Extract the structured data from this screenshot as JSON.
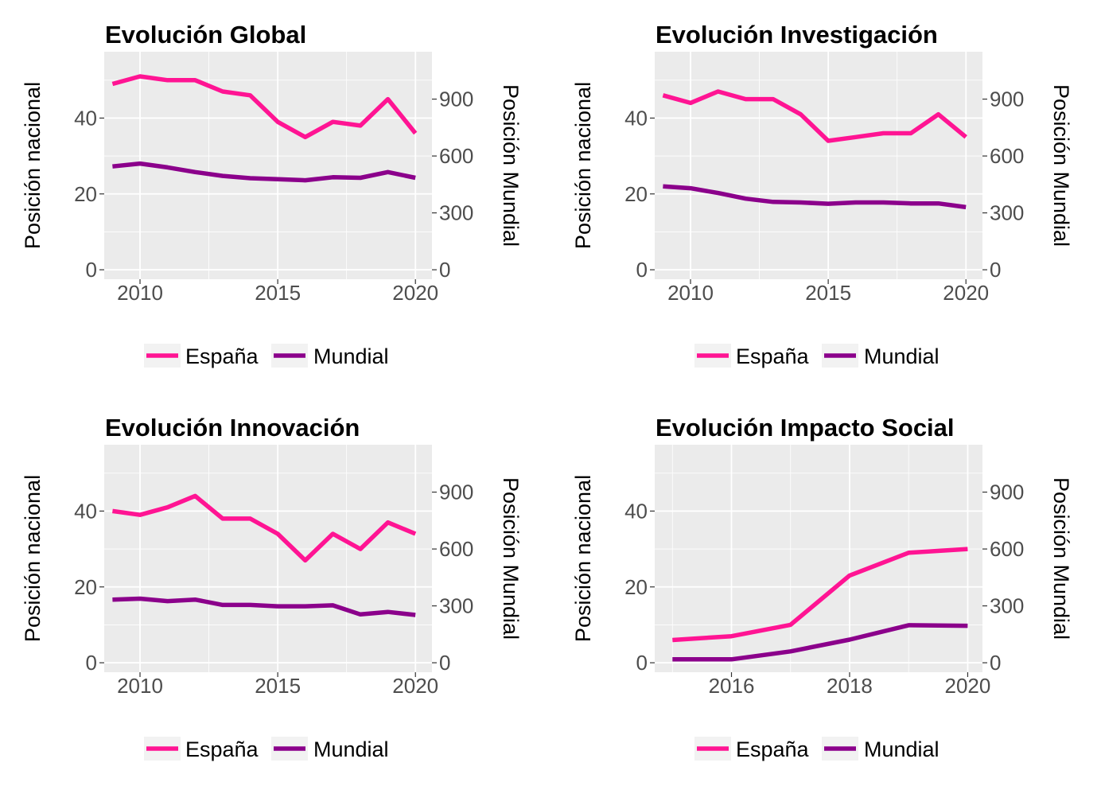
{
  "colors": {
    "espana": "#ff1493",
    "mundial": "#8b008b",
    "panel_bg": "#ebebeb",
    "grid": "#ffffff",
    "tick_text": "#4d4d4d"
  },
  "chart_data": [
    {
      "type": "line",
      "title": "Evolución Global",
      "ylabel": "Posición nacional",
      "y2label": "Posición Mundial",
      "x": [
        2009,
        2010,
        2011,
        2012,
        2013,
        2014,
        2015,
        2016,
        2017,
        2018,
        2019,
        2020
      ],
      "xlim": [
        2008.7,
        2020.6
      ],
      "ylim": [
        57.5,
        -2.5
      ],
      "xticks": [
        2010,
        2015,
        2020
      ],
      "yticks": [
        0,
        20,
        40
      ],
      "y2ticks": [
        0,
        300,
        600,
        900
      ],
      "y2_scale": 20,
      "series": [
        {
          "name": "España",
          "axis": "left",
          "values": [
            49,
            51,
            50,
            50,
            47,
            46,
            39,
            35,
            39,
            38,
            45,
            36
          ]
        },
        {
          "name": "Mundial",
          "axis": "right",
          "values": [
            545,
            560,
            540,
            515,
            495,
            483,
            478,
            472,
            488,
            485,
            515,
            485
          ]
        }
      ],
      "legend": [
        "España",
        "Mundial"
      ],
      "legend_position": "bottom"
    },
    {
      "type": "line",
      "title": "Evolución Investigación",
      "ylabel": "Posición nacional",
      "y2label": "Posición Mundial",
      "x": [
        2009,
        2010,
        2011,
        2012,
        2013,
        2014,
        2015,
        2016,
        2017,
        2018,
        2019,
        2020
      ],
      "xlim": [
        2008.7,
        2020.6
      ],
      "ylim": [
        57.5,
        -2.5
      ],
      "xticks": [
        2010,
        2015,
        2020
      ],
      "yticks": [
        0,
        20,
        40
      ],
      "y2ticks": [
        0,
        300,
        600,
        900
      ],
      "y2_scale": 20,
      "series": [
        {
          "name": "España",
          "axis": "left",
          "values": [
            46,
            44,
            47,
            45,
            45,
            41,
            34,
            35,
            36,
            36,
            41,
            35
          ]
        },
        {
          "name": "Mundial",
          "axis": "right",
          "values": [
            440,
            430,
            405,
            375,
            358,
            355,
            348,
            355,
            355,
            350,
            350,
            330
          ]
        }
      ],
      "legend": [
        "España",
        "Mundial"
      ],
      "legend_position": "bottom"
    },
    {
      "type": "line",
      "title": "Evolución Innovación",
      "ylabel": "Posición nacional",
      "y2label": "Posición Mundial",
      "x": [
        2009,
        2010,
        2011,
        2012,
        2013,
        2014,
        2015,
        2016,
        2017,
        2018,
        2019,
        2020
      ],
      "xlim": [
        2008.7,
        2020.6
      ],
      "ylim": [
        57.5,
        -2.5
      ],
      "xticks": [
        2010,
        2015,
        2020
      ],
      "yticks": [
        0,
        20,
        40
      ],
      "y2ticks": [
        0,
        300,
        600,
        900
      ],
      "y2_scale": 20,
      "series": [
        {
          "name": "España",
          "axis": "left",
          "values": [
            40,
            39,
            41,
            44,
            38,
            38,
            34,
            27,
            34,
            30,
            37,
            34
          ]
        },
        {
          "name": "Mundial",
          "axis": "right",
          "values": [
            333,
            338,
            325,
            333,
            305,
            305,
            298,
            298,
            303,
            255,
            268,
            252
          ]
        }
      ],
      "legend": [
        "España",
        "Mundial"
      ],
      "legend_position": "bottom"
    },
    {
      "type": "line",
      "title": "Evolución Impacto Social",
      "ylabel": "Posición nacional",
      "y2label": "Posición Mundial",
      "x": [
        2015,
        2016,
        2017,
        2018,
        2019,
        2020
      ],
      "xlim": [
        2014.7,
        2020.25
      ],
      "ylim": [
        57.5,
        -2.5
      ],
      "xticks": [
        2016,
        2018,
        2020
      ],
      "yticks": [
        0,
        20,
        40
      ],
      "y2ticks": [
        0,
        300,
        600,
        900
      ],
      "y2_scale": 20,
      "series": [
        {
          "name": "España",
          "axis": "left",
          "values": [
            6,
            7,
            10,
            23,
            29,
            30
          ]
        },
        {
          "name": "Mundial",
          "axis": "right",
          "values": [
            18,
            18,
            60,
            122,
            198,
            195
          ]
        }
      ],
      "legend": [
        "España",
        "Mundial"
      ],
      "legend_position": "bottom"
    }
  ]
}
